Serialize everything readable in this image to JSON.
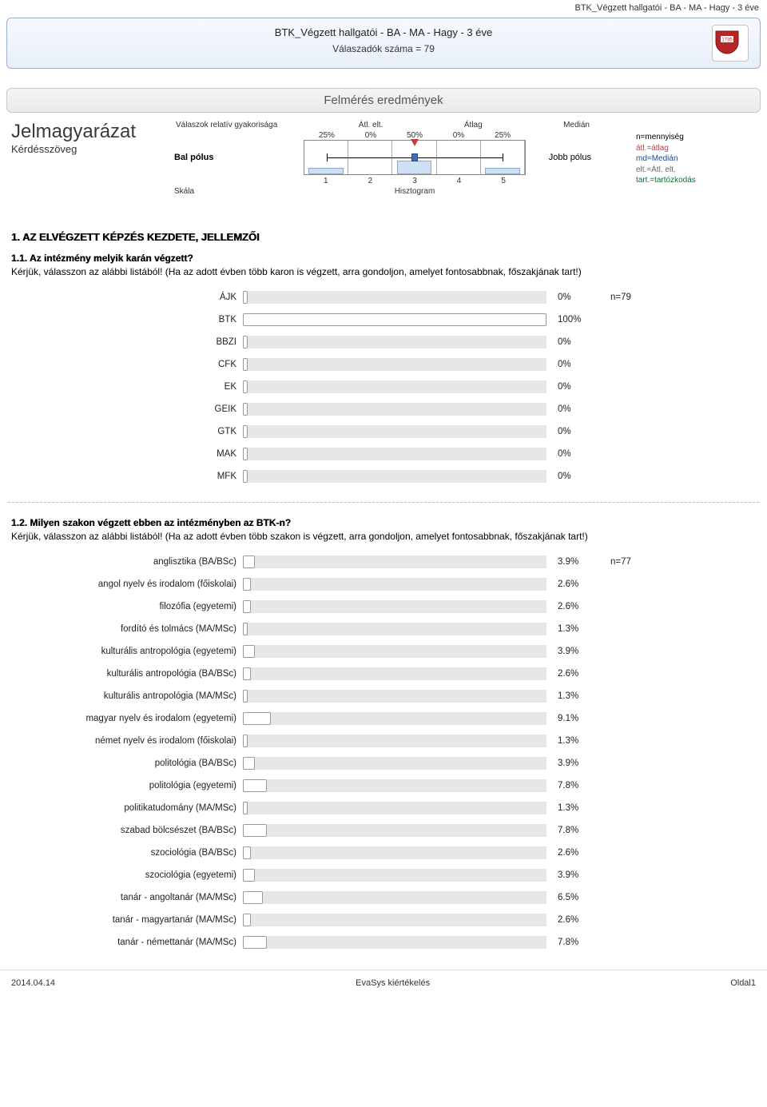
{
  "page": {
    "top_right": "BTK_Végzett hallgatói - BA - MA - Hagy - 3 éve",
    "header_title": "BTK_Végzett hallgatói - BA - MA - Hagy - 3 éve",
    "header_sub": "Válaszadók száma = 79",
    "chip": "Felmérés eredmények",
    "footer_left": "2014.04.14",
    "footer_center": "EvaSys kiértékelés",
    "footer_right": "Oldal1"
  },
  "legend": {
    "title": "Jelmagyarázat",
    "question_label": "Kérdésszöveg",
    "freq_label": "Válaszok relatív gyakorisága",
    "mean_dev_label": "Átl. elt.",
    "mean_label": "Átlag",
    "median_label": "Medián",
    "left_pole": "Bal pólus",
    "right_pole": "Jobb pólus",
    "scale_label": "Skála",
    "histo_label": "Hisztogram",
    "axis": [
      "1",
      "2",
      "3",
      "4",
      "5"
    ],
    "pcts": [
      "25%",
      "0%",
      "50%",
      "0%",
      "25%"
    ],
    "bar_heights_pct": [
      40,
      0,
      80,
      0,
      40
    ],
    "mean_pos_pct": 50,
    "median_pos_pct": 50,
    "whisker_from_pct": 10,
    "whisker_to_pct": 90,
    "colors": {
      "bar_fill": "#cde0f4",
      "bar_border": "#88aad0",
      "median": "#c23d3d",
      "mean": "#3b6db8"
    },
    "key": {
      "n": "n=mennyiség",
      "atl": "átl.=átlag",
      "md": "md=Medián",
      "elt": "elt.=Átl. elt.",
      "tart": "tart.=tartózkodás"
    }
  },
  "section1": {
    "heading": "1. AZ ELVÉGZETT KÉPZÉS KEZDETE, JELLEMZŐI",
    "q1": {
      "title": "1.1. Az intézmény melyik karán végzett?",
      "desc": "Kérjük, válasszon az alábbi listából! (Ha az adott évben több karon is végzett, arra gondoljon, amelyet fontosabbnak, főszakjának tart!)",
      "n": "n=79",
      "max_pct": 100,
      "items": [
        {
          "label": "ÁJK",
          "value": "0%",
          "pct": 0
        },
        {
          "label": "BTK",
          "value": "100%",
          "pct": 100
        },
        {
          "label": "BBZI",
          "value": "0%",
          "pct": 0
        },
        {
          "label": "CFK",
          "value": "0%",
          "pct": 0
        },
        {
          "label": "EK",
          "value": "0%",
          "pct": 0
        },
        {
          "label": "GEIK",
          "value": "0%",
          "pct": 0
        },
        {
          "label": "GTK",
          "value": "0%",
          "pct": 0
        },
        {
          "label": "MAK",
          "value": "0%",
          "pct": 0
        },
        {
          "label": "MFK",
          "value": "0%",
          "pct": 0
        }
      ]
    },
    "q2": {
      "title": "1.2. Milyen szakon végzett ebben az intézményben az BTK-n?",
      "desc": "Kérjük, válasszon az alábbi listából! (Ha az adott évben több szakon is végzett, arra gondoljon, amelyet fontosabbnak, főszakjának tart!)",
      "n": "n=77",
      "max_pct": 100,
      "items": [
        {
          "label": "anglisztika (BA/BSc)",
          "value": "3.9%",
          "pct": 3.9
        },
        {
          "label": "angol nyelv és irodalom (főiskolai)",
          "value": "2.6%",
          "pct": 2.6
        },
        {
          "label": "filozófia (egyetemi)",
          "value": "2.6%",
          "pct": 2.6
        },
        {
          "label": "fordító és tolmács  (MA/MSc)",
          "value": "1.3%",
          "pct": 1.3
        },
        {
          "label": "kulturális antropológia (egyetemi)",
          "value": "3.9%",
          "pct": 3.9
        },
        {
          "label": "kulturális antropológia (BA/BSc)",
          "value": "2.6%",
          "pct": 2.6
        },
        {
          "label": "kulturális antropológia (MA/MSc)",
          "value": "1.3%",
          "pct": 1.3
        },
        {
          "label": "magyar nyelv és irodalom (egyetemi)",
          "value": "9.1%",
          "pct": 9.1
        },
        {
          "label": "német nyelv és irodalom (főiskolai)",
          "value": "1.3%",
          "pct": 1.3
        },
        {
          "label": "politológia (BA/BSc)",
          "value": "3.9%",
          "pct": 3.9
        },
        {
          "label": "politológia (egyetemi)",
          "value": "7.8%",
          "pct": 7.8
        },
        {
          "label": "politikatudomány (MA/MSc)",
          "value": "1.3%",
          "pct": 1.3
        },
        {
          "label": "szabad bölcsészet (BA/BSc)",
          "value": "7.8%",
          "pct": 7.8
        },
        {
          "label": "szociológia (BA/BSc)",
          "value": "2.6%",
          "pct": 2.6
        },
        {
          "label": "szociológia (egyetemi)",
          "value": "3.9%",
          "pct": 3.9
        },
        {
          "label": "tanár - angoltanár (MA/MSc)",
          "value": "6.5%",
          "pct": 6.5
        },
        {
          "label": "tanár - magyartanár (MA/MSc)",
          "value": "2.6%",
          "pct": 2.6
        },
        {
          "label": "tanár - némettanár (MA/MSc)",
          "value": "7.8%",
          "pct": 7.8
        }
      ]
    }
  }
}
